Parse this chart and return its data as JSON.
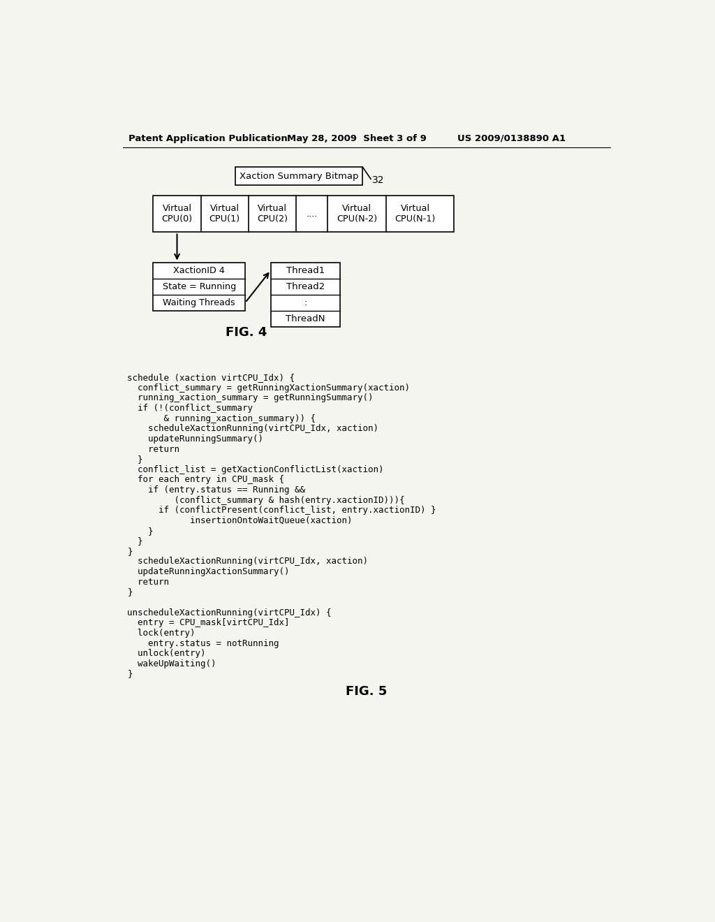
{
  "bg_color": "#f5f5f0",
  "header_left": "Patent Application Publication",
  "header_mid": "May 28, 2009  Sheet 3 of 9",
  "header_right": "US 2009/0138890 A1",
  "fig4_label": "FIG. 4",
  "fig5_label": "FIG. 5",
  "bitmap_label": "Xaction Summary Bitmap",
  "bitmap_ref": "32",
  "cpu_cells": [
    "Virtual\nCPU(0)",
    "Virtual\nCPU(1)",
    "Virtual\nCPU(2)",
    "....",
    "Virtual\nCPU(N-2)",
    "Virtual\nCPU(N-1)"
  ],
  "entry_rows": [
    "XactionID 4",
    "State = Running",
    "Waiting Threads"
  ],
  "thread_rows": [
    "Thread1",
    "Thread2",
    ":",
    "ThreadN"
  ],
  "code_lines": [
    "schedule (xaction virtCPU_Idx) {",
    "  conflict_summary = getRunningXactionSummary(xaction)",
    "  running_xaction_summary = getRunningSummary()",
    "  if (!(conflict_summary",
    "       & running_xaction_summary)) {",
    "    scheduleXactionRunning(virtCPU_Idx, xaction)",
    "    updateRunningSummary()",
    "    return",
    "  }",
    "  conflict_list = getXactionConflictList(xaction)",
    "  for each entry in CPU_mask {",
    "    if (entry.status == Running &&",
    "         (conflict_summary & hash(entry.xactionID))){",
    "      if (conflictPresent(conflict_list, entry.xactionID) }",
    "            insertionOntoWaitQueue(xaction)",
    "    }",
    "  }",
    "}",
    "  scheduleXactionRunning(virtCPU_Idx, xaction)",
    "  updateRunningXactionSummary()",
    "  return",
    "}",
    "",
    "unscheduleXactionRunning(virtCPU_Idx) {",
    "  entry = CPU_mask[virtCPU_Idx]",
    "  lock(entry)",
    "    entry.status = notRunning",
    "  unlock(entry)",
    "  wakeUpWaiting()",
    "}"
  ]
}
